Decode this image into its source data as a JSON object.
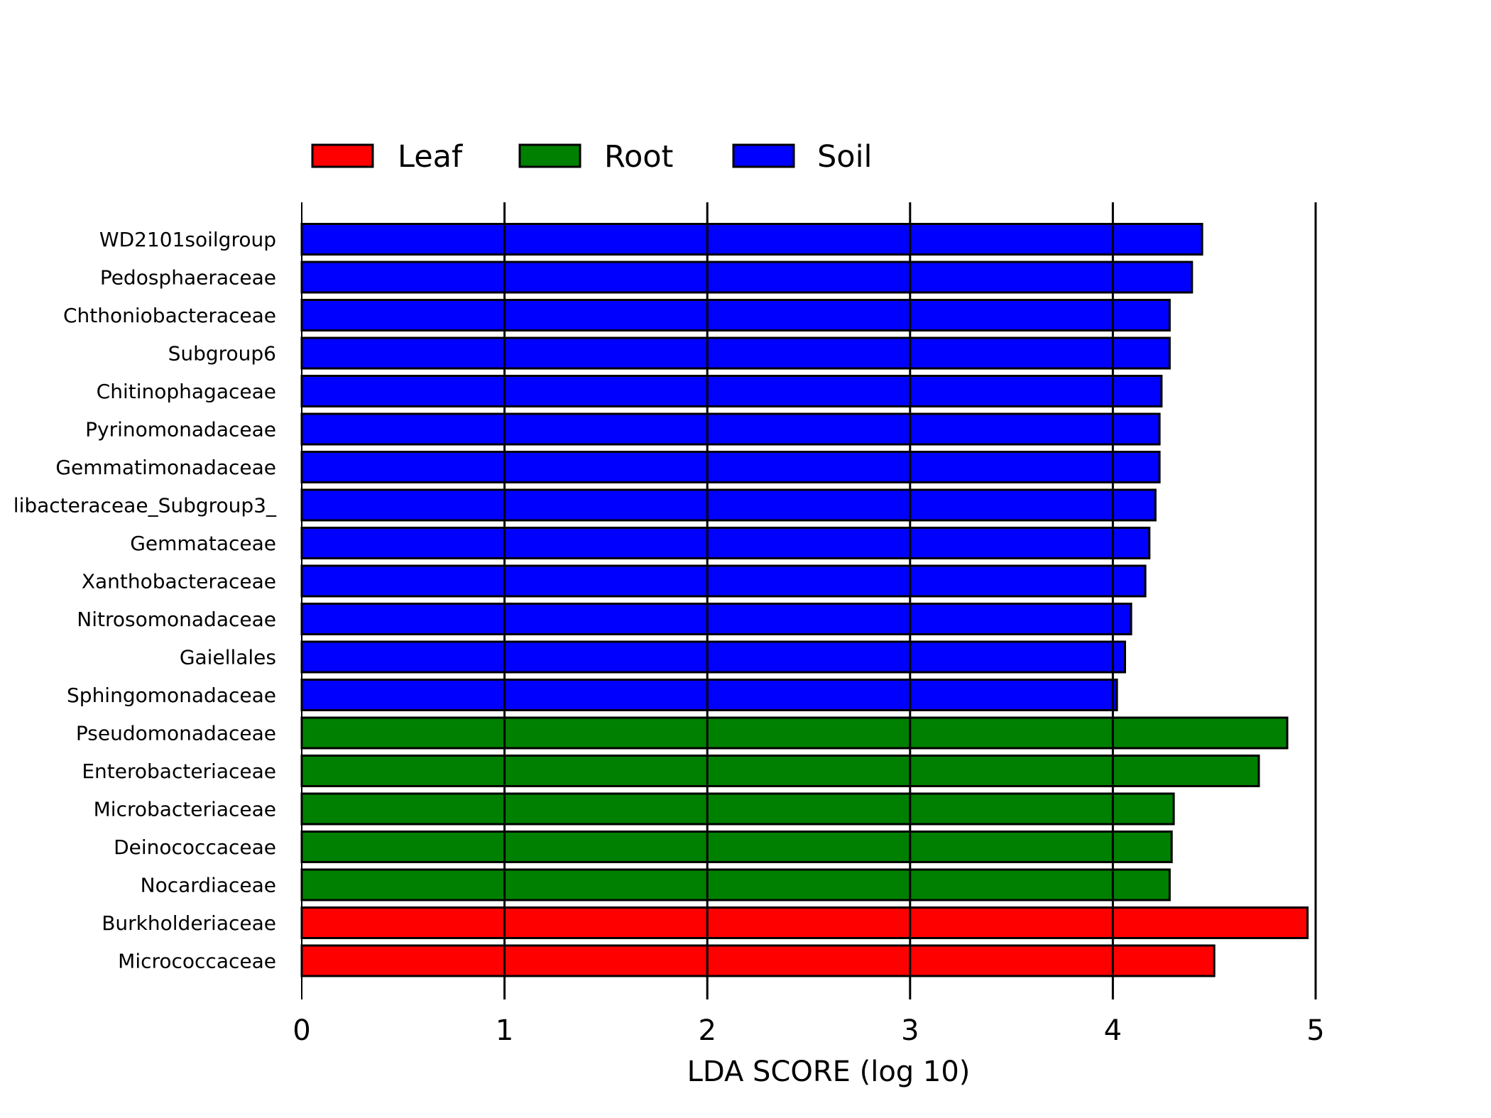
{
  "chart_data": {
    "type": "bar",
    "orientation": "horizontal",
    "xlabel": "LDA SCORE (log 10)",
    "ylabel": "",
    "xlim": [
      0,
      5
    ],
    "xticks": [
      0,
      1,
      2,
      3,
      4,
      5
    ],
    "grid": "vertical lines at each x tick",
    "legend": {
      "placement": "top-left",
      "entries": [
        {
          "name": "Leaf",
          "color": "#ff0000"
        },
        {
          "name": "Root",
          "color": "#008000"
        },
        {
          "name": "Soil",
          "color": "#0000ff"
        }
      ]
    },
    "categories": [
      "WD2101soilgroup",
      "Pedosphaeraceae",
      "Chthoniobacteraceae",
      "Subgroup6",
      "Chitinophagaceae",
      "Pyrinomonadaceae",
      "Gemmatimonadaceae",
      "libacteraceae_Subgroup3_",
      "Gemmataceae",
      "Xanthobacteraceae",
      "Nitrosomonadaceae",
      "Gaiellales",
      "Sphingomonadaceae",
      "Pseudomonadaceae",
      "Enterobacteriaceae",
      "Microbacteriaceae",
      "Deinococcaceae",
      "Nocardiaceae",
      "Burkholderiaceae",
      "Micrococcaceae"
    ],
    "values": [
      4.44,
      4.39,
      4.28,
      4.28,
      4.24,
      4.23,
      4.23,
      4.21,
      4.18,
      4.16,
      4.09,
      4.06,
      4.02,
      4.86,
      4.72,
      4.3,
      4.29,
      4.28,
      4.96,
      4.5
    ],
    "groups": [
      "Soil",
      "Soil",
      "Soil",
      "Soil",
      "Soil",
      "Soil",
      "Soil",
      "Soil",
      "Soil",
      "Soil",
      "Soil",
      "Soil",
      "Soil",
      "Root",
      "Root",
      "Root",
      "Root",
      "Root",
      "Leaf",
      "Leaf"
    ]
  }
}
